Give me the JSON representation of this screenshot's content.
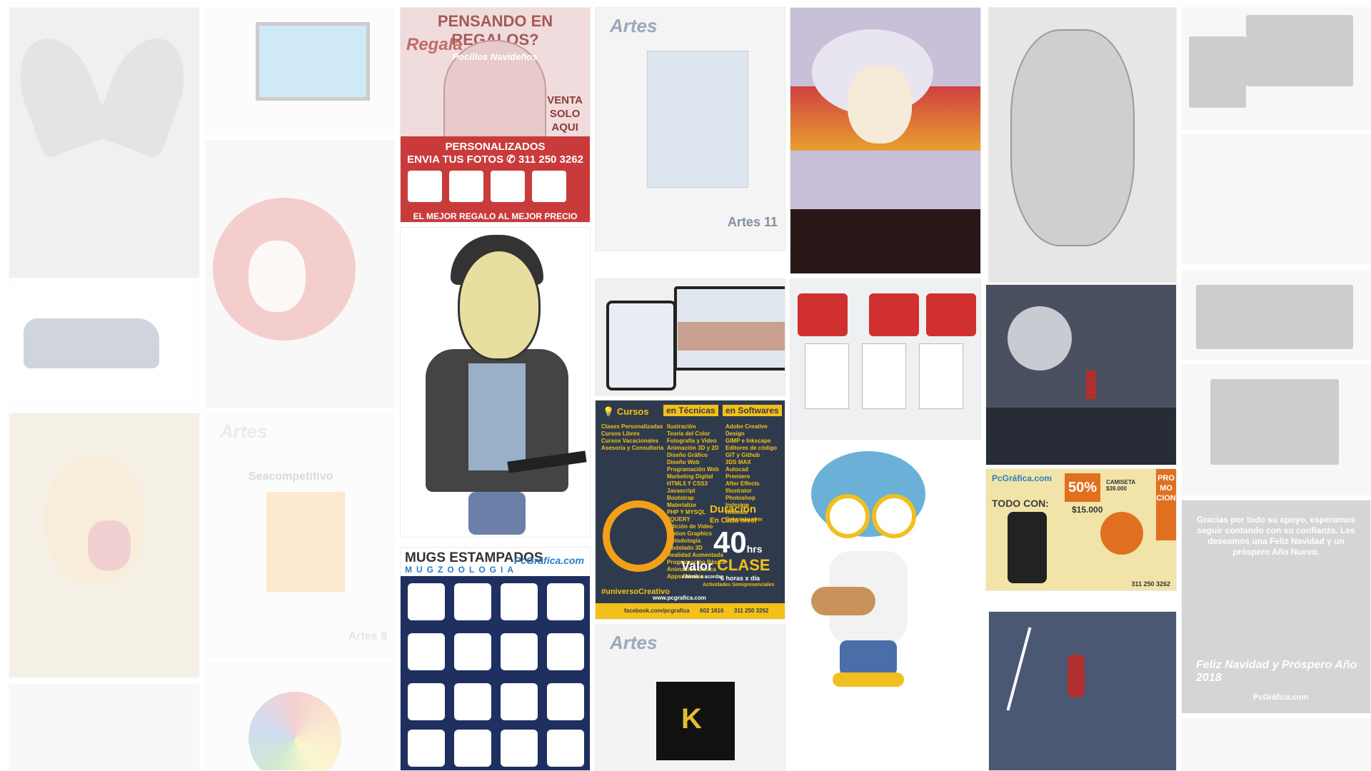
{
  "regalos": {
    "title": "PENSANDO EN REGALOS?",
    "regala": "Regala",
    "mug_text": "Pocillos Navideños",
    "venta": "VENTA\nSOLO\nAQUI",
    "personalizados": "PERSONALIZADOS",
    "envia": "ENVIA TUS FOTOS",
    "phone": "311 250 3262",
    "footer": "EL MEJOR REGALO AL MEJOR PRECIO",
    "colors": {
      "band": "#c93b3b"
    }
  },
  "mugs": {
    "title": "MUGS ESTAMPADOS",
    "subtitle": "MUGZOOLOGIA",
    "logo": "PcGráfica.com"
  },
  "artes11": {
    "logo": "Artes",
    "number": "Artes 11"
  },
  "artes8": {
    "logo": "Artes",
    "brand": "Seacompetitivo",
    "number": "Artes 8"
  },
  "artes12": {
    "logo": "Artes"
  },
  "cursos": {
    "title": "Cursos",
    "tag1": "en Técnicas",
    "tag2": "en Softwares",
    "left_list": [
      "Clases Personalizadas",
      "Cursos Libres",
      "Cursos Vacacionales",
      "Asesoria y Consultoria"
    ],
    "mid_list": [
      "Ilustración",
      "Teoría del Color",
      "Fotografía y Video",
      "Animación 3D y 2D",
      "Diseño Gráfico",
      "Diseño Web",
      "Programación Web",
      "Marketing Digital",
      "HTML5 Y CSS3",
      "Javascript",
      "Bootstrap",
      "Materialize",
      "PHP Y MYSQL",
      "JQUERY",
      "Edición de Video",
      "Motion Graphics",
      "Metodología",
      "Modelado 3D",
      "Realidad Aumentada",
      "Programación Básica",
      "Animación Básica",
      "Apps Móviles"
    ],
    "right_list": [
      "Adobe Creative Design",
      "GIMP e Inkscape",
      "Editores de código",
      "GIT y Github",
      "3DS MAX",
      "Autocad",
      "Premiere",
      "After Effects",
      "Illustrator",
      "Photoshop",
      "Indesign",
      "Animate",
      "Dreamweaver"
    ],
    "duracion": "Duración",
    "nivel": "En Cada nivel",
    "hours": "40",
    "hrs": "hrs",
    "clase": "CLASE",
    "horas_dia": "6 horas x día",
    "actividades": "Actividades Semipresenciales",
    "valor": "Valor",
    "valor_sub": "x horas a acordar",
    "hashtag": "#universoCreativo",
    "web": "www.pcgrafica.com",
    "facebook": "facebook.com/pcgrafica",
    "phone1": "602 1616",
    "phone2": "311 250 3262",
    "colors": {
      "accent": "#f3c019",
      "bg": "#2f3b4d"
    }
  },
  "promo": {
    "logo": "PcGráfica.com",
    "todo": "TODO CON:",
    "discount": "50%",
    "promo": "PRO\nMO\nCION",
    "price1": "CAMISETA $39.000",
    "price2": "$15.000",
    "phone": "311 250 3262"
  },
  "xmas": {
    "text": "Gracias por todo su apoyo, esperamos seguir contando con su confianza. Les deseamos una Feliz Navidad y un próspero Año Nuevo.",
    "greeting": "Feliz Navidad y Próspero Año 2018",
    "logo": "PcGráfica.com"
  }
}
